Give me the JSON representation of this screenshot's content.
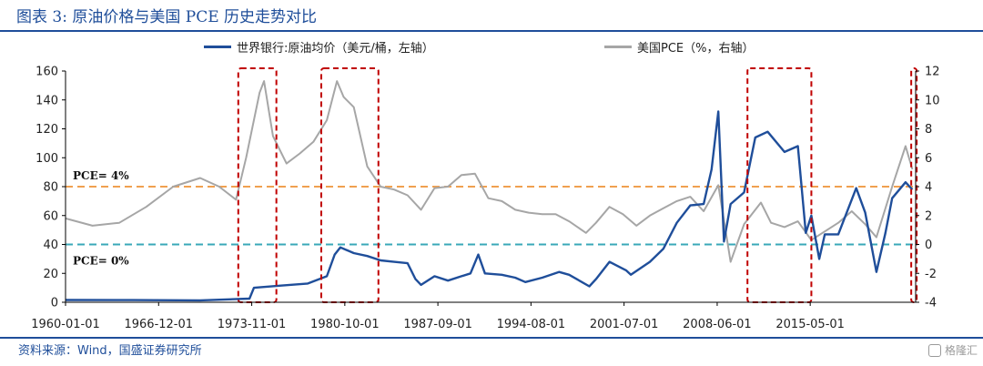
{
  "title": "图表 3:  原油价格与美国 PCE 历史走势对比",
  "source": "资料来源：Wind，国盛证券研究所",
  "watermark": "格隆汇",
  "colors": {
    "oil": "#1f4e9a",
    "pce": "#a6a6a6",
    "line4": "#f0a050",
    "line0": "#3aa8b8",
    "box": "#c00000",
    "accent": "#1f4e9a"
  },
  "chart_data": {
    "type": "line",
    "series": [
      {
        "name": "世界银行:原油均价（美元/桶，左轴）",
        "axis": "left",
        "points": [
          [
            "1960-01-01",
            1.6
          ],
          [
            "1965-01-01",
            1.5
          ],
          [
            "1970-01-01",
            1.3
          ],
          [
            "1973-09-01",
            2.5
          ],
          [
            "1974-01-01",
            10
          ],
          [
            "1976-01-01",
            11.5
          ],
          [
            "1978-01-01",
            13
          ],
          [
            "1979-06-01",
            18
          ],
          [
            "1980-01-01",
            33
          ],
          [
            "1980-06-01",
            38
          ],
          [
            "1981-06-01",
            34
          ],
          [
            "1982-06-01",
            32
          ],
          [
            "1983-06-01",
            29
          ],
          [
            "1984-06-01",
            28
          ],
          [
            "1985-06-01",
            27
          ],
          [
            "1986-01-01",
            16
          ],
          [
            "1986-06-01",
            12
          ],
          [
            "1987-06-01",
            18
          ],
          [
            "1988-06-01",
            15
          ],
          [
            "1989-06-01",
            18
          ],
          [
            "1990-02-01",
            20
          ],
          [
            "1990-09-01",
            33
          ],
          [
            "1991-03-01",
            20
          ],
          [
            "1992-06-01",
            19
          ],
          [
            "1993-06-01",
            17
          ],
          [
            "1994-03-01",
            14
          ],
          [
            "1995-06-01",
            17
          ],
          [
            "1996-09-01",
            21
          ],
          [
            "1997-06-01",
            19
          ],
          [
            "1998-12-01",
            11
          ],
          [
            "1999-06-01",
            16
          ],
          [
            "2000-06-01",
            28
          ],
          [
            "2001-09-01",
            22
          ],
          [
            "2002-01-01",
            19
          ],
          [
            "2003-06-01",
            28
          ],
          [
            "2004-06-01",
            37
          ],
          [
            "2005-06-01",
            55
          ],
          [
            "2006-06-01",
            67
          ],
          [
            "2007-06-01",
            68
          ],
          [
            "2008-01-01",
            92
          ],
          [
            "2008-07-01",
            132
          ],
          [
            "2008-12-01",
            42
          ],
          [
            "2009-06-01",
            68
          ],
          [
            "2010-06-01",
            76
          ],
          [
            "2011-04-01",
            114
          ],
          [
            "2012-03-01",
            118
          ],
          [
            "2013-06-01",
            104
          ],
          [
            "2014-06-01",
            108
          ],
          [
            "2015-01-01",
            48
          ],
          [
            "2015-06-01",
            60
          ],
          [
            "2016-01-01",
            30
          ],
          [
            "2016-06-01",
            47
          ],
          [
            "2017-06-01",
            47
          ],
          [
            "2018-10-01",
            79
          ],
          [
            "2019-06-01",
            62
          ],
          [
            "2020-04-01",
            21
          ],
          [
            "2020-12-01",
            48
          ],
          [
            "2021-06-01",
            72
          ],
          [
            "2022-06-01",
            83
          ],
          [
            "2022-12-01",
            78
          ]
        ]
      },
      {
        "name": "美国PCE（%，右轴）",
        "axis": "right",
        "points": [
          [
            "1960-01-01",
            1.8
          ],
          [
            "1962-01-01",
            1.3
          ],
          [
            "1964-01-01",
            1.5
          ],
          [
            "1966-01-01",
            2.6
          ],
          [
            "1968-01-01",
            4
          ],
          [
            "1970-01-01",
            4.6
          ],
          [
            "1971-06-01",
            4.0
          ],
          [
            "1972-09-01",
            3.1
          ],
          [
            "1973-06-01",
            6
          ],
          [
            "1974-06-01",
            10.5
          ],
          [
            "1974-10-01",
            11.3
          ],
          [
            "1975-06-01",
            7.5
          ],
          [
            "1976-06-01",
            5.6
          ],
          [
            "1977-06-01",
            6.3
          ],
          [
            "1978-06-01",
            7.1
          ],
          [
            "1979-06-01",
            8.6
          ],
          [
            "1980-03-01",
            11.3
          ],
          [
            "1980-09-01",
            10.2
          ],
          [
            "1981-06-01",
            9.5
          ],
          [
            "1982-06-01",
            5.4
          ],
          [
            "1983-06-01",
            4
          ],
          [
            "1984-06-01",
            3.8
          ],
          [
            "1985-06-01",
            3.4
          ],
          [
            "1986-06-01",
            2.4
          ],
          [
            "1987-06-01",
            3.9
          ],
          [
            "1988-06-01",
            4
          ],
          [
            "1989-06-01",
            4.8
          ],
          [
            "1990-06-01",
            4.9
          ],
          [
            "1991-06-01",
            3.2
          ],
          [
            "1992-06-01",
            3.0
          ],
          [
            "1993-06-01",
            2.4
          ],
          [
            "1994-06-01",
            2.2
          ],
          [
            "1995-06-01",
            2.1
          ],
          [
            "1996-06-01",
            2.1
          ],
          [
            "1997-06-01",
            1.6
          ],
          [
            "1998-09-01",
            0.8
          ],
          [
            "1999-06-01",
            1.5
          ],
          [
            "2000-06-01",
            2.6
          ],
          [
            "2001-06-01",
            2.1
          ],
          [
            "2002-06-01",
            1.3
          ],
          [
            "2003-06-01",
            2.0
          ],
          [
            "2004-06-01",
            2.5
          ],
          [
            "2005-06-01",
            3.0
          ],
          [
            "2006-06-01",
            3.3
          ],
          [
            "2007-06-01",
            2.3
          ],
          [
            "2008-07-01",
            4.1
          ],
          [
            "2009-06-01",
            -1.2
          ],
          [
            "2010-06-01",
            1.4
          ],
          [
            "2011-09-01",
            2.9
          ],
          [
            "2012-06-01",
            1.5
          ],
          [
            "2013-06-01",
            1.2
          ],
          [
            "2014-06-01",
            1.6
          ],
          [
            "2015-06-01",
            0.3
          ],
          [
            "2016-06-01",
            0.9
          ],
          [
            "2017-06-01",
            1.5
          ],
          [
            "2018-06-01",
            2.3
          ],
          [
            "2019-06-01",
            1.4
          ],
          [
            "2020-04-01",
            0.5
          ],
          [
            "2021-06-01",
            4.0
          ],
          [
            "2022-06-01",
            6.8
          ],
          [
            "2022-12-01",
            5.2
          ]
        ]
      }
    ],
    "left_axis": {
      "ylim": [
        0,
        160
      ],
      "ticks": [
        "0",
        "20",
        "40",
        "60",
        "80",
        "100",
        "120",
        "140",
        "160"
      ]
    },
    "right_axis": {
      "ylim": [
        -4,
        12
      ],
      "ticks": [
        "-4",
        "-2",
        "0",
        "2",
        "4",
        "6",
        "8",
        "10",
        "12"
      ]
    },
    "x_axis": {
      "range": [
        "1960-01-01",
        "2023-03-01"
      ],
      "ticks": [
        "1960-01-01",
        "1966-12-01",
        "1973-11-01",
        "1980-10-01",
        "1987-09-01",
        "1994-08-01",
        "2001-07-01",
        "2008-06-01",
        "2015-05-01"
      ]
    },
    "reference_lines": [
      {
        "label": "PCE= 4%",
        "right_value": 4,
        "style": "dashed-orange"
      },
      {
        "label": "PCE= 0%",
        "right_value": 0,
        "style": "dashed-teal"
      }
    ],
    "highlight_periods": [
      [
        "1972-11-01",
        "1975-09-01"
      ],
      [
        "1979-01-01",
        "1983-04-01"
      ],
      [
        "2010-09-01",
        "2015-06-01"
      ],
      [
        "2022-11-01",
        "2023-03-01"
      ]
    ],
    "grid": false,
    "legend": "top"
  }
}
